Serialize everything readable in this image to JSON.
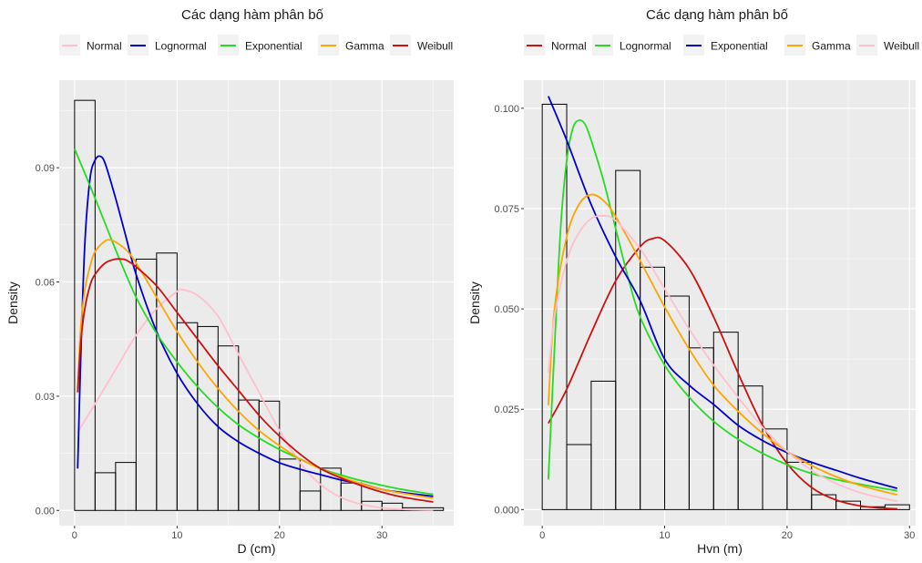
{
  "chart_data": [
    {
      "type": "histogram-density",
      "title": "Các dạng hàm phân bố",
      "xlabel": "D (cm)",
      "ylabel": "Density",
      "xlim": [
        -1.5,
        37
      ],
      "ylim": [
        -0.004,
        0.113
      ],
      "xticks": [
        0,
        10,
        20,
        30
      ],
      "xtick_labels": [
        "0",
        "10",
        "20",
        "30"
      ],
      "yticks": [
        0,
        0.03,
        0.06,
        0.09
      ],
      "ytick_labels": [
        "0.00",
        "0.03",
        "0.06",
        "0.09"
      ],
      "grid": true,
      "legend_position": "top",
      "histogram": {
        "bins": [
          [
            0,
            2
          ],
          [
            2,
            4
          ],
          [
            4,
            6
          ],
          [
            6,
            8
          ],
          [
            8,
            10
          ],
          [
            10,
            12
          ],
          [
            12,
            14
          ],
          [
            14,
            16
          ],
          [
            16,
            18
          ],
          [
            18,
            20
          ],
          [
            20,
            22
          ],
          [
            22,
            24
          ],
          [
            24,
            26
          ],
          [
            26,
            28
          ],
          [
            28,
            30
          ],
          [
            30,
            32
          ],
          [
            32,
            36
          ]
        ],
        "density": [
          0.1077,
          0.0099,
          0.0126,
          0.066,
          0.0676,
          0.0493,
          0.0483,
          0.0432,
          0.029,
          0.0287,
          0.0135,
          0.0051,
          0.0111,
          0.0072,
          0.0024,
          0.0019,
          0.0007
        ]
      },
      "series": [
        {
          "name": "Normal",
          "color": "#FFC0CB",
          "x": [
            0.3,
            2,
            4,
            6,
            8,
            10,
            10.5,
            12,
            14,
            16,
            18,
            20,
            22,
            24,
            26,
            28,
            30,
            32,
            35
          ],
          "y": [
            0.0205,
            0.028,
            0.037,
            0.046,
            0.053,
            0.0575,
            0.058,
            0.0565,
            0.051,
            0.041,
            0.031,
            0.021,
            0.0125,
            0.0068,
            0.0034,
            0.0016,
            0.0007,
            0.0003,
            0.0001
          ]
        },
        {
          "name": "Lognormal",
          "color": "#0000CD",
          "x": [
            0.3,
            0.6,
            1,
            1.5,
            2,
            2.5,
            3,
            4,
            5,
            6,
            8,
            10,
            12,
            14,
            16,
            18,
            20,
            22,
            24,
            26,
            28,
            30,
            32,
            35
          ],
          "y": [
            0.011,
            0.04,
            0.07,
            0.087,
            0.092,
            0.093,
            0.091,
            0.082,
            0.072,
            0.062,
            0.047,
            0.036,
            0.028,
            0.022,
            0.018,
            0.015,
            0.0125,
            0.0108,
            0.0094,
            0.008,
            0.007,
            0.0055,
            0.0047,
            0.0037
          ]
        },
        {
          "name": "Exponential",
          "color": "#22DD22",
          "x": [
            0,
            2,
            4,
            6,
            8,
            10,
            12,
            14,
            16,
            18,
            20,
            22,
            24,
            26,
            28,
            30,
            32,
            35
          ],
          "y": [
            0.095,
            0.082,
            0.0685,
            0.056,
            0.0465,
            0.039,
            0.0325,
            0.027,
            0.0225,
            0.019,
            0.016,
            0.0135,
            0.011,
            0.0093,
            0.0078,
            0.0066,
            0.0055,
            0.0042
          ]
        },
        {
          "name": "Gamma",
          "color": "#FFA500",
          "x": [
            0.3,
            0.6,
            1,
            1.5,
            2,
            3,
            3.5,
            4,
            5,
            6,
            8,
            10,
            12,
            14,
            16,
            18,
            20,
            22,
            24,
            26,
            28,
            30,
            32,
            35
          ],
          "y": [
            0.032,
            0.048,
            0.058,
            0.064,
            0.068,
            0.0708,
            0.071,
            0.0705,
            0.0685,
            0.065,
            0.056,
            0.047,
            0.039,
            0.032,
            0.026,
            0.021,
            0.017,
            0.0135,
            0.011,
            0.0088,
            0.007,
            0.0055,
            0.0045,
            0.0032
          ]
        },
        {
          "name": "Weibull",
          "color": "#CC1111",
          "x": [
            0.3,
            0.6,
            1,
            1.5,
            2,
            3,
            4,
            4.5,
            5,
            6,
            8,
            10,
            12,
            14,
            16,
            18,
            20,
            22,
            24,
            26,
            28,
            30,
            32,
            35
          ],
          "y": [
            0.031,
            0.044,
            0.053,
            0.059,
            0.062,
            0.065,
            0.066,
            0.066,
            0.0658,
            0.064,
            0.059,
            0.052,
            0.045,
            0.038,
            0.0315,
            0.025,
            0.0195,
            0.0148,
            0.011,
            0.0085,
            0.0065,
            0.0048,
            0.0035,
            0.0022
          ]
        }
      ]
    },
    {
      "type": "histogram-density",
      "title": "Các dạng hàm phân bố",
      "xlabel": "Hvn (m)",
      "ylabel": "Density",
      "xlim": [
        -1.5,
        30.5
      ],
      "ylim": [
        -0.004,
        0.107
      ],
      "xticks": [
        0,
        10,
        20,
        30
      ],
      "xtick_labels": [
        "0",
        "10",
        "20",
        "30"
      ],
      "yticks": [
        0,
        0.025,
        0.05,
        0.075,
        0.1
      ],
      "ytick_labels": [
        "0.000",
        "0.025",
        "0.050",
        "0.075",
        "0.100"
      ],
      "grid": true,
      "legend_position": "top",
      "histogram": {
        "bins": [
          [
            0,
            2
          ],
          [
            2,
            4
          ],
          [
            4,
            6
          ],
          [
            6,
            8
          ],
          [
            8,
            10
          ],
          [
            10,
            12
          ],
          [
            12,
            14
          ],
          [
            14,
            16
          ],
          [
            16,
            18
          ],
          [
            18,
            20
          ],
          [
            20,
            22
          ],
          [
            22,
            24
          ],
          [
            24,
            26
          ],
          [
            26,
            28
          ],
          [
            28,
            30
          ]
        ],
        "density": [
          0.101,
          0.0162,
          0.032,
          0.0845,
          0.0604,
          0.0532,
          0.0403,
          0.0442,
          0.0308,
          0.0201,
          0.0118,
          0.0037,
          0.0021,
          0.0007,
          0.0012
        ]
      },
      "series": [
        {
          "name": "Normal",
          "color": "#CC1111",
          "x": [
            0.5,
            2,
            4,
            6,
            8,
            9,
            10,
            12,
            14,
            16,
            18,
            20,
            22,
            24,
            26,
            28,
            29
          ],
          "y": [
            0.0215,
            0.03,
            0.044,
            0.057,
            0.0655,
            0.0675,
            0.067,
            0.06,
            0.048,
            0.034,
            0.021,
            0.0115,
            0.0055,
            0.0024,
            0.0009,
            0.0003,
            0.0002
          ]
        },
        {
          "name": "Lognormal",
          "color": "#22DD22",
          "x": [
            0.5,
            1,
            1.5,
            2,
            2.5,
            3,
            3.5,
            4,
            5,
            6,
            7,
            8,
            10,
            12,
            14,
            16,
            18,
            20,
            22,
            24,
            26,
            28,
            29
          ],
          "y": [
            0.0075,
            0.04,
            0.07,
            0.087,
            0.095,
            0.097,
            0.096,
            0.092,
            0.082,
            0.07,
            0.058,
            0.048,
            0.036,
            0.028,
            0.022,
            0.0175,
            0.014,
            0.0112,
            0.009,
            0.0075,
            0.0063,
            0.0052,
            0.0047
          ]
        },
        {
          "name": "Exponential",
          "color": "#0000CD",
          "x": [
            0.5,
            2,
            4,
            6,
            8,
            10,
            12,
            14,
            16,
            18,
            20,
            22,
            24,
            26,
            28,
            29
          ],
          "y": [
            0.103,
            0.092,
            0.076,
            0.063,
            0.052,
            0.0375,
            0.031,
            0.0262,
            0.021,
            0.0172,
            0.0142,
            0.0118,
            0.0098,
            0.0078,
            0.0061,
            0.0053
          ]
        },
        {
          "name": "Gamma",
          "color": "#FFA500",
          "x": [
            0.5,
            1,
            2,
            3,
            4,
            5,
            6,
            8,
            10,
            12,
            14,
            16,
            18,
            20,
            22,
            24,
            26,
            28,
            29
          ],
          "y": [
            0.026,
            0.05,
            0.068,
            0.076,
            0.0785,
            0.077,
            0.073,
            0.062,
            0.0505,
            0.04,
            0.031,
            0.0245,
            0.019,
            0.0145,
            0.011,
            0.0082,
            0.006,
            0.0044,
            0.0037
          ]
        },
        {
          "name": "Weibull",
          "color": "#FFC0CB",
          "x": [
            0.5,
            1,
            2,
            3,
            4,
            5,
            6,
            8,
            10,
            12,
            14,
            16,
            18,
            20,
            22,
            24,
            26,
            28,
            29
          ],
          "y": [
            0.034,
            0.048,
            0.062,
            0.069,
            0.0725,
            0.0732,
            0.072,
            0.065,
            0.055,
            0.045,
            0.036,
            0.028,
            0.0205,
            0.0145,
            0.0098,
            0.0065,
            0.0042,
            0.0027,
            0.0021
          ]
        }
      ]
    }
  ]
}
